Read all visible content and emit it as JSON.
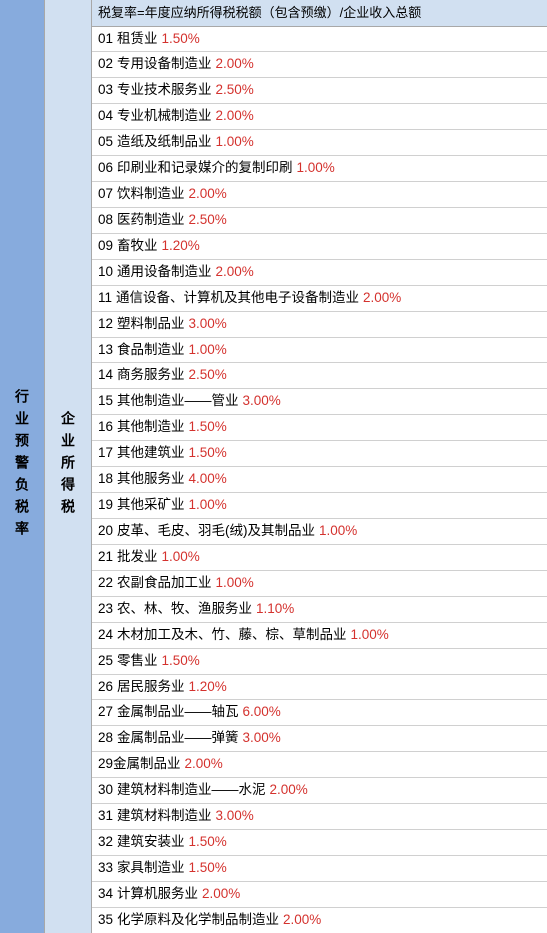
{
  "leftLabel": "行业预警负税率",
  "midLabel": "企业所得税",
  "formula": "税复率=年度应纳所得税税额（包含预缴）/企业收入总额",
  "rateColor": "#d4322e",
  "textColor": "#000000",
  "leftBg": "#87abdd",
  "midBg": "#d1e0f1",
  "formulaBg": "#d1e0f1",
  "borderColor": "#a8a8a8",
  "rows": [
    {
      "num": "01",
      "label": "租赁业",
      "rate": "1.50%"
    },
    {
      "num": "02",
      "label": "专用设备制造业",
      "rate": "2.00%"
    },
    {
      "num": "03",
      "label": "专业技术服务业",
      "rate": "2.50%"
    },
    {
      "num": "04",
      "label": "专业机械制造业",
      "rate": "2.00%"
    },
    {
      "num": "05",
      "label": "造纸及纸制品业",
      "rate": "1.00%"
    },
    {
      "num": "06",
      "label": "印刷业和记录媒介的复制印刷",
      "rate": "1.00%"
    },
    {
      "num": "07",
      "label": "饮料制造业",
      "rate": "2.00%"
    },
    {
      "num": "08",
      "label": "医药制造业",
      "rate": "2.50%"
    },
    {
      "num": "09",
      "label": "畜牧业",
      "rate": "1.20%"
    },
    {
      "num": "10",
      "label": "通用设备制造业",
      "rate": "2.00%"
    },
    {
      "num": "11",
      "label": "通信设备、计算机及其他电子设备制造业",
      "rate": "2.00%"
    },
    {
      "num": "12",
      "label": "塑料制品业",
      "rate": "3.00%"
    },
    {
      "num": "13",
      "label": "食品制造业",
      "rate": "1.00%"
    },
    {
      "num": "14",
      "label": "商务服务业",
      "rate": "2.50%"
    },
    {
      "num": "15",
      "label": "其他制造业——管业",
      "rate": "3.00%"
    },
    {
      "num": "16",
      "label": "其他制造业",
      "rate": "1.50%"
    },
    {
      "num": "17",
      "label": "其他建筑业",
      "rate": "1.50%"
    },
    {
      "num": "18",
      "label": "其他服务业",
      "rate": "4.00%"
    },
    {
      "num": "19",
      "label": "其他采矿业",
      "rate": "1.00%"
    },
    {
      "num": "20",
      "label": "皮革、毛皮、羽毛(绒)及其制品业",
      "rate": "1.00%"
    },
    {
      "num": "21",
      "label": "批发业",
      "rate": "1.00%"
    },
    {
      "num": "22",
      "label": "农副食品加工业",
      "rate": "1.00%"
    },
    {
      "num": "23",
      "label": "农、林、牧、渔服务业",
      "rate": "1.10%"
    },
    {
      "num": "24",
      "label": "木材加工及木、竹、藤、棕、草制品业",
      "rate": "1.00%"
    },
    {
      "num": "25",
      "label": "零售业",
      "rate": "1.50%"
    },
    {
      "num": "26",
      "label": "居民服务业",
      "rate": "1.20%"
    },
    {
      "num": "27",
      "label": "金属制品业——轴瓦",
      "rate": "6.00%"
    },
    {
      "num": "28",
      "label": "金属制品业——弹簧",
      "rate": "3.00%"
    },
    {
      "num": "29",
      "label": "金属制品业",
      "rate": "2.00%",
      "nospace": true
    },
    {
      "num": "30",
      "label": "建筑材料制造业——水泥",
      "rate": "2.00%"
    },
    {
      "num": "31",
      "label": "建筑材料制造业",
      "rate": "3.00%"
    },
    {
      "num": "32",
      "label": "建筑安装业",
      "rate": "1.50%"
    },
    {
      "num": "33",
      "label": "家具制造业",
      "rate": "1.50%"
    },
    {
      "num": "34",
      "label": "计算机服务业",
      "rate": "2.00%"
    },
    {
      "num": "35",
      "label": "化学原料及化学制品制造业",
      "rate": "2.00%"
    }
  ]
}
